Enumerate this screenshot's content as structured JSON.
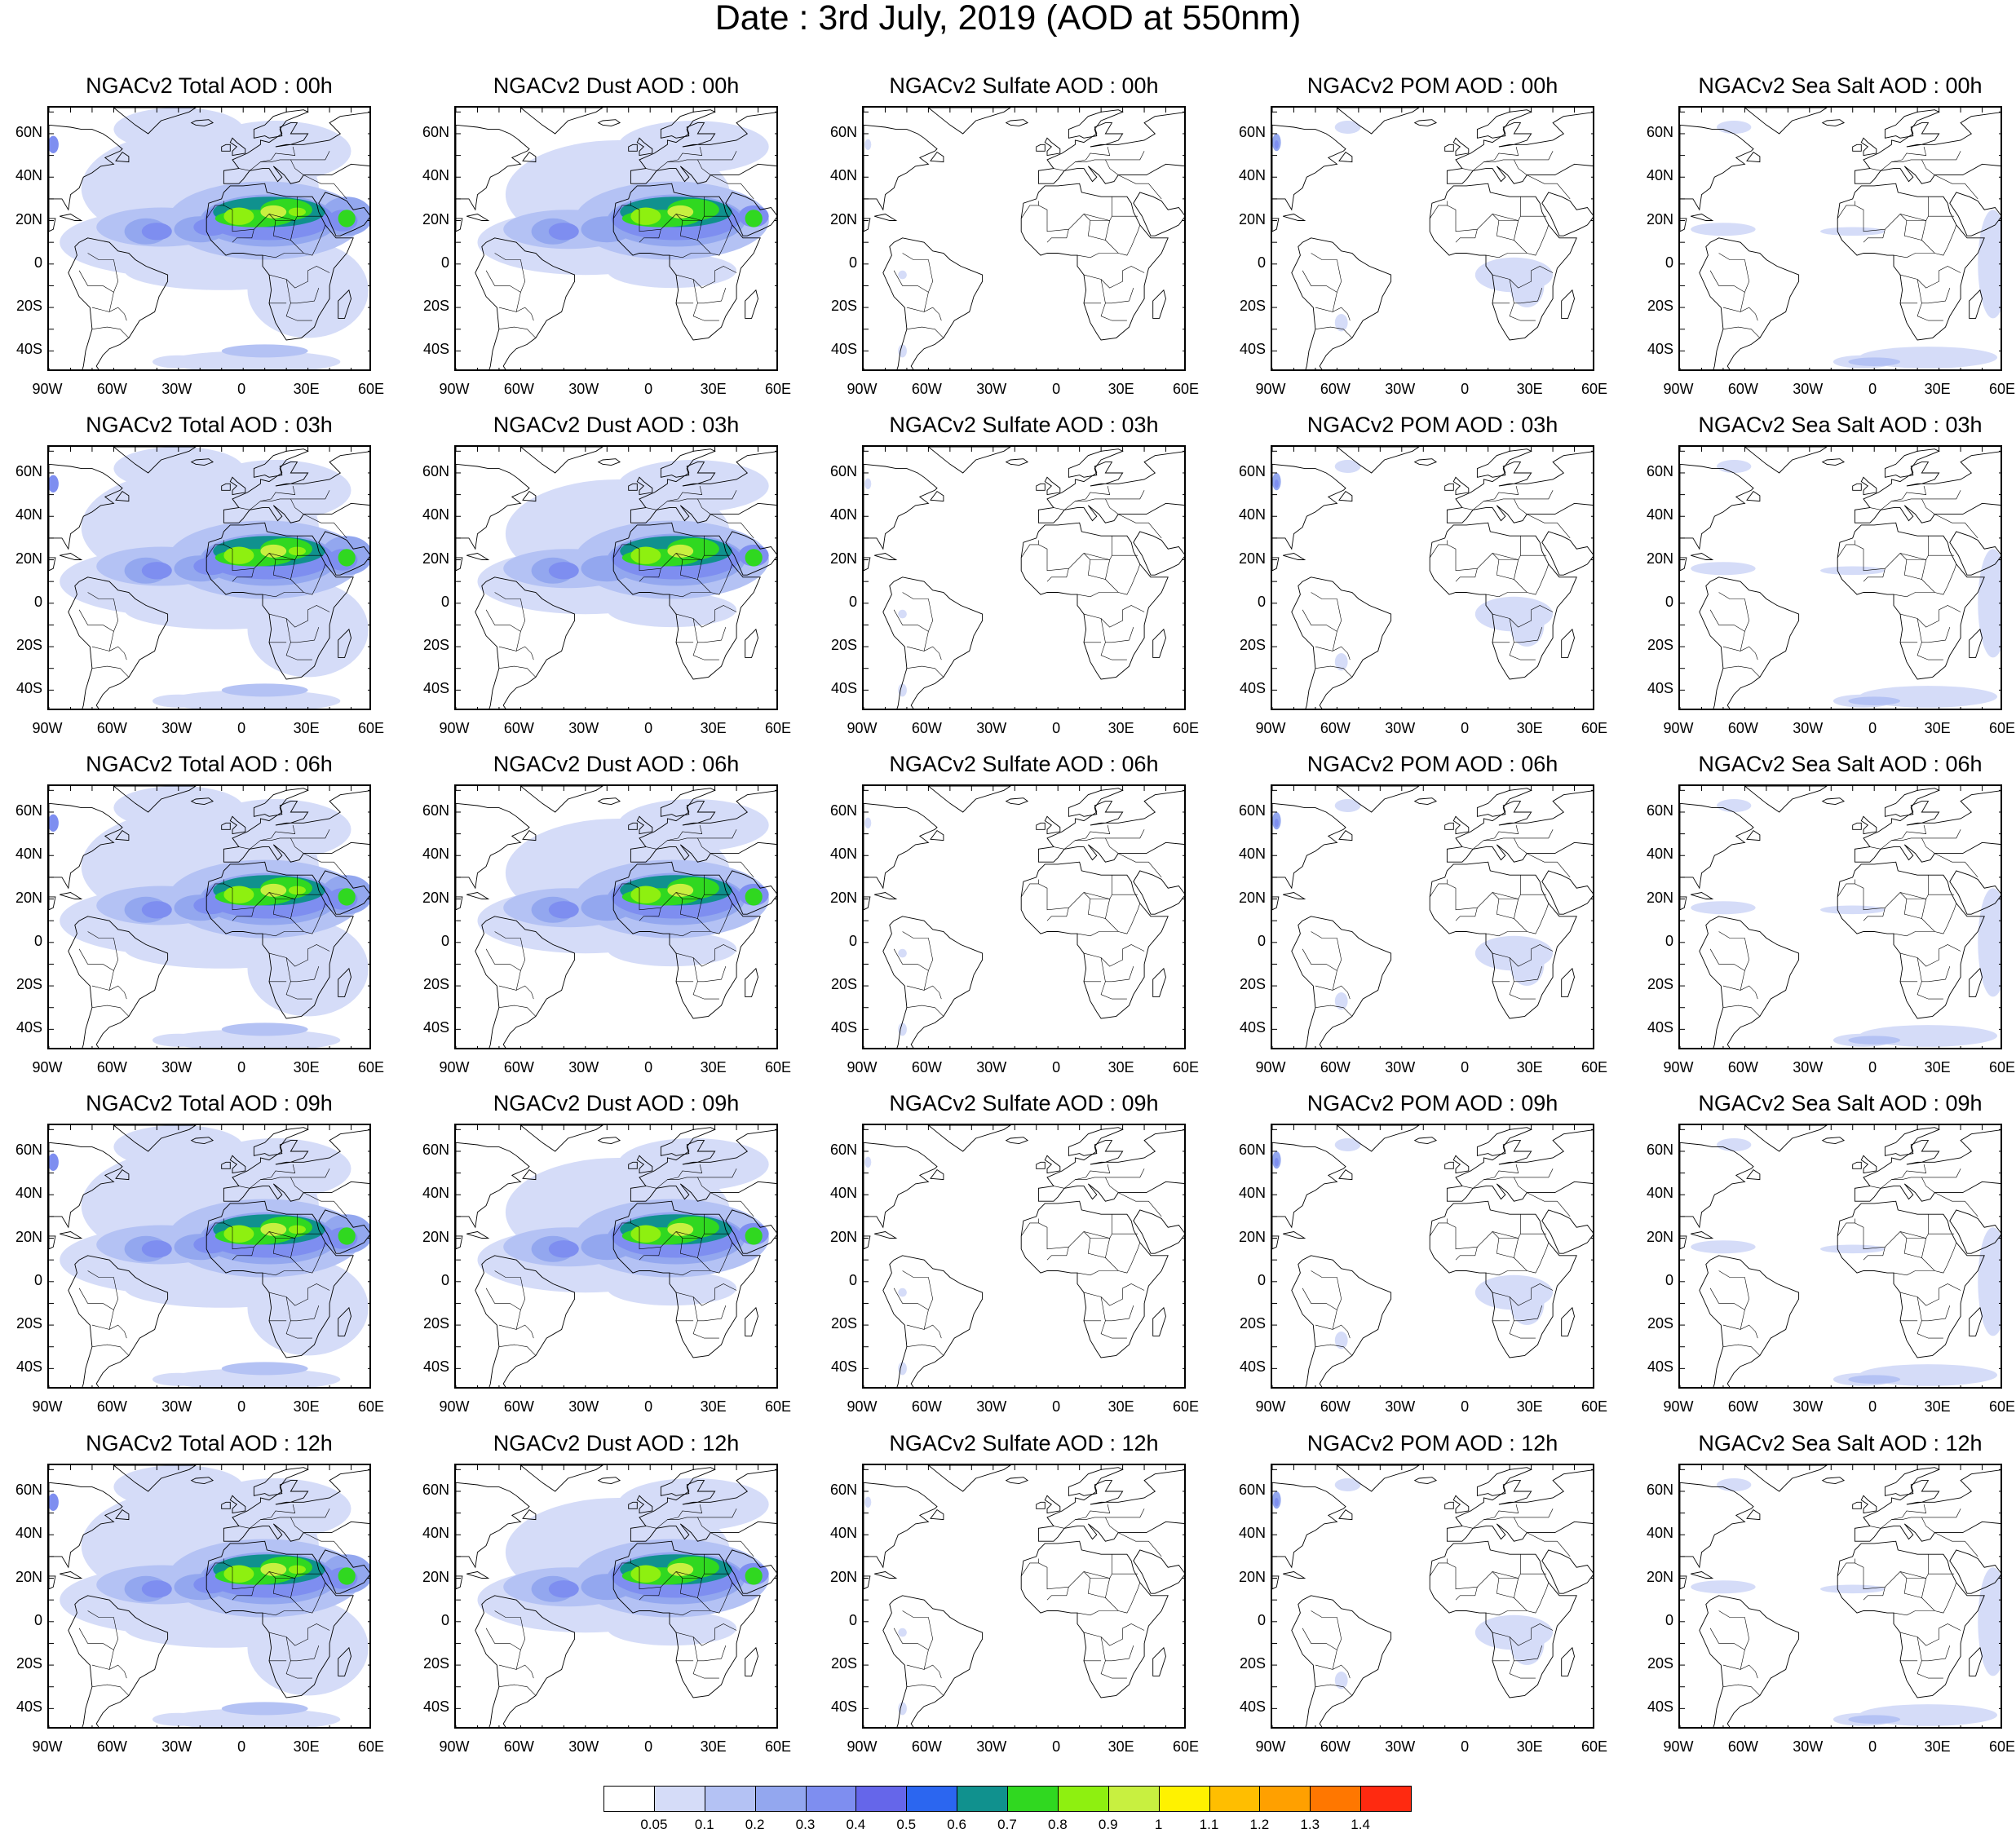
{
  "title": "Date : 3rd July, 2019 (AOD at 550nm)",
  "colors": {
    "levels": [
      "#ffffff",
      "#d5dcf8",
      "#b4c2f4",
      "#93a7ef",
      "#7e8ef0",
      "#6566ea",
      "#2b66f0",
      "#10918e",
      "#30d820",
      "#8ef010",
      "#c8f040",
      "#fff200",
      "#ffbe00",
      "#ffa000",
      "#ff7700",
      "#ff2a10"
    ],
    "coast": "#000000"
  },
  "colorbar": {
    "labels": [
      "0.05",
      "0.1",
      "0.2",
      "0.3",
      "0.4",
      "0.5",
      "0.6",
      "0.7",
      "0.8",
      "0.9",
      "1",
      "1.1",
      "1.2",
      "1.3",
      "1.4"
    ]
  },
  "lat_ticks": [
    "60N",
    "40N",
    "20N",
    "0",
    "20S",
    "40S"
  ],
  "lon_ticks": [
    "90W",
    "60W",
    "30W",
    "0",
    "30E",
    "60E"
  ],
  "species": [
    "total",
    "dust",
    "sulfate",
    "pom",
    "seasalt"
  ],
  "panels": [
    [
      "NGACv2 Total AOD : 00h",
      "NGACv2 Dust AOD : 00h",
      "NGACv2 Sulfate AOD : 00h",
      "NGACv2 POM AOD : 00h",
      "NGACv2 Sea Salt AOD : 00h"
    ],
    [
      "NGACv2 Total AOD : 03h",
      "NGACv2 Dust AOD : 03h",
      "NGACv2 Sulfate AOD : 03h",
      "NGACv2 POM AOD : 03h",
      "NGACv2 Sea Salt AOD : 03h"
    ],
    [
      "NGACv2 Total AOD : 06h",
      "NGACv2 Dust AOD : 06h",
      "NGACv2 Sulfate AOD : 06h",
      "NGACv2 POM AOD : 06h",
      "NGACv2 Sea Salt AOD : 06h"
    ],
    [
      "NGACv2 Total AOD : 09h",
      "NGACv2 Dust AOD : 09h",
      "NGACv2 Sulfate AOD : 09h",
      "NGACv2 POM AOD : 09h",
      "NGACv2 Sea Salt  AOD : 09h"
    ],
    [
      "NGACv2 Total AOD  : 12h",
      "NGACv2 Dust AOD : 12h",
      "NGACv2 Sulfate AOD : 12h",
      "NGACv2 POM  AOD : 12h",
      "NGACv2 Sea Salt  AOD : 12h"
    ]
  ]
}
